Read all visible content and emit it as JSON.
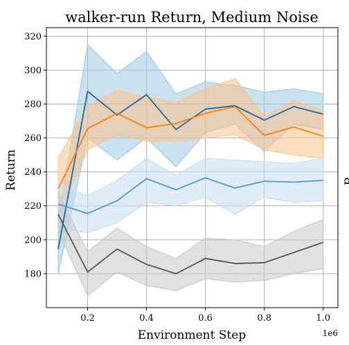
{
  "chart_data": {
    "type": "line",
    "title": "walker-run Return, Medium Noise",
    "xlabel": "Environment Step",
    "ylabel": "Return",
    "x_offset_label": "1e6",
    "cut_off_right_label": "R",
    "xlim": [
      0.06,
      1.05
    ],
    "ylim": [
      160,
      325
    ],
    "xticks": [
      0.2,
      0.4,
      0.6,
      0.8,
      1.0
    ],
    "xtick_labels": [
      "0.2",
      "0.4",
      "0.6",
      "0.8",
      "1.0"
    ],
    "yticks": [
      180,
      200,
      220,
      240,
      260,
      280,
      300,
      320
    ],
    "ytick_labels": [
      "180",
      "200",
      "220",
      "240",
      "260",
      "280",
      "300",
      "320"
    ],
    "grid": true,
    "x": [
      0.1,
      0.2,
      0.3,
      0.4,
      0.5,
      0.6,
      0.7,
      0.8,
      0.9,
      1.0
    ],
    "series": [
      {
        "color": "#1a6aa1",
        "band_color": "#9ec9e2",
        "values": [
          194.5,
          287.5,
          273.5,
          285.5,
          265,
          277,
          279,
          270.5,
          278.5,
          274
        ],
        "lower": [
          180,
          260,
          247,
          260,
          243,
          263,
          268,
          252,
          268,
          265
        ],
        "upper": [
          212,
          315,
          298,
          311,
          286,
          293,
          291,
          287,
          289,
          286
        ]
      },
      {
        "color": "#ff7f0e",
        "band_color": "#ffc38a",
        "values": [
          230,
          265.5,
          274.5,
          266,
          268.5,
          274.5,
          278.5,
          261.5,
          266.5,
          261
        ],
        "lower": [
          214,
          253,
          262,
          258,
          258,
          260,
          262,
          253,
          250,
          248
        ],
        "upper": [
          248,
          279,
          288,
          284,
          281,
          289,
          295,
          273,
          282,
          276
        ]
      },
      {
        "color": "#4f97cf",
        "band_color": "#c6dcf0",
        "values": [
          221,
          215.5,
          223,
          236,
          229.5,
          236.5,
          230.5,
          234.5,
          234,
          235
        ],
        "lower": [
          207,
          204,
          210,
          222,
          220,
          225,
          215,
          225,
          222,
          223
        ],
        "upper": [
          233,
          226,
          235,
          248,
          238,
          248,
          247,
          246,
          245,
          248
        ]
      },
      {
        "color": "#555555",
        "band_color": "#c9c9c9",
        "values": [
          215,
          181,
          194.5,
          185.5,
          180,
          189,
          186,
          186.5,
          192.5,
          198.5
        ],
        "lower": [
          205,
          167,
          181,
          173,
          170,
          177,
          175,
          176,
          180,
          183
        ],
        "upper": [
          228,
          193,
          207,
          196,
          189,
          201,
          200,
          196,
          205,
          212
        ]
      }
    ]
  }
}
